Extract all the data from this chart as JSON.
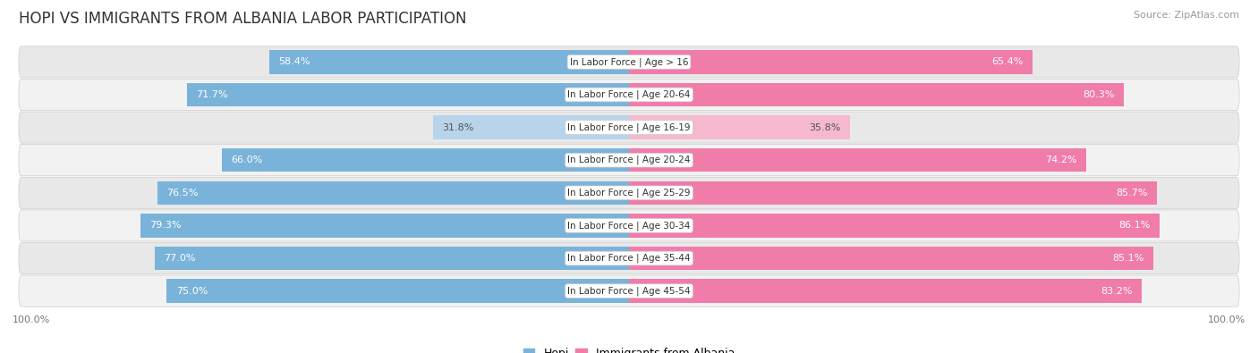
{
  "title": "HOPI VS IMMIGRANTS FROM ALBANIA LABOR PARTICIPATION",
  "source": "Source: ZipAtlas.com",
  "categories": [
    "In Labor Force | Age > 16",
    "In Labor Force | Age 20-64",
    "In Labor Force | Age 16-19",
    "In Labor Force | Age 20-24",
    "In Labor Force | Age 25-29",
    "In Labor Force | Age 30-34",
    "In Labor Force | Age 35-44",
    "In Labor Force | Age 45-54"
  ],
  "hopi_values": [
    58.4,
    71.7,
    31.8,
    66.0,
    76.5,
    79.3,
    77.0,
    75.0
  ],
  "albania_values": [
    65.4,
    80.3,
    35.8,
    74.2,
    85.7,
    86.1,
    85.1,
    83.2
  ],
  "hopi_color": "#7ab3d9",
  "hopi_color_light": "#b8d4ea",
  "albania_color": "#f07caa",
  "albania_color_light": "#f5b8cf",
  "row_bg_colors": [
    "#e8e8e8",
    "#f2f2f2",
    "#e8e8e8",
    "#f2f2f2",
    "#e8e8e8",
    "#f2f2f2",
    "#e8e8e8",
    "#f2f2f2"
  ],
  "label_color_white": "#ffffff",
  "label_color_dark": "#555555",
  "max_value": 100.0,
  "bar_height": 0.72,
  "title_fontsize": 12,
  "label_fontsize": 8,
  "cat_fontsize": 7.5,
  "legend_fontsize": 9,
  "axis_label_fontsize": 8,
  "light_rows": [
    2
  ]
}
